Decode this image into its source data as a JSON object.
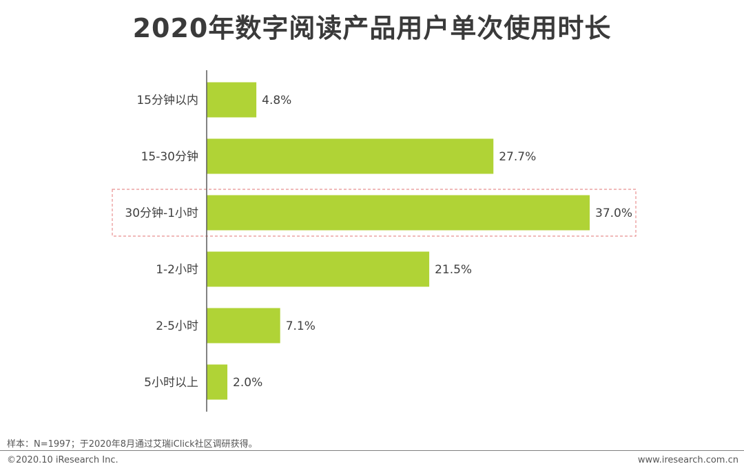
{
  "chart_data": {
    "type": "bar",
    "orientation": "horizontal",
    "title": "2020年数字阅读产品用户单次使用时长",
    "categories": [
      "15分钟以内",
      "15-30分钟",
      "30分钟-1小时",
      "1-2小时",
      "2-5小时",
      "5小时以上"
    ],
    "values": [
      4.8,
      27.7,
      37.0,
      21.5,
      7.1,
      2.0
    ],
    "value_labels": [
      "4.8%",
      "27.7%",
      "37.0%",
      "21.5%",
      "7.1%",
      "2.0%"
    ],
    "unit": "%",
    "highlighted_category": "30分钟-1小时",
    "xlim": [
      0,
      37.0
    ],
    "grid": false,
    "legend": "none"
  },
  "colors": {
    "bar": "#B0D336",
    "highlight_border": "#E88F8F",
    "axis": "#595959",
    "title": "#3a3a3a",
    "text": "#3f3f3f"
  },
  "footer": {
    "source_note": "样本：N=1997；于2020年8月通过艾瑞iClick社区调研获得。",
    "copyright": "©2020.10 iResearch Inc.",
    "website": "www.iresearch.com.cn"
  }
}
